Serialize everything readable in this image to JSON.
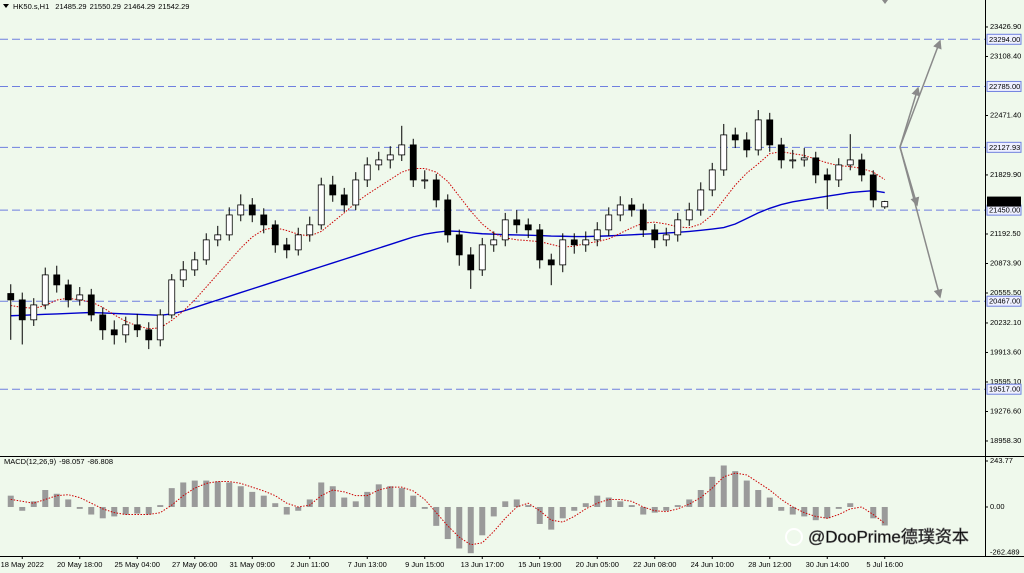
{
  "chart_data": {
    "type": "candlestick",
    "symbol": "HK50.s,H1",
    "color": "#000000",
    "categories": [
      null,
      "18 May 2022",
      null,
      null,
      null,
      null,
      "20 May 18:00",
      null,
      null,
      null,
      null,
      "25 May 04:00",
      null,
      null,
      null,
      null,
      "27 May 06:00",
      null,
      null,
      null,
      null,
      "31 May 09:00",
      null,
      null,
      null,
      null,
      "2 Jun 11:00",
      null,
      null,
      null,
      null,
      "7 Jun 13:00",
      null,
      null,
      null,
      null,
      "9 Jun 15:00",
      null,
      null,
      null,
      null,
      "13 Jun 17:00",
      null,
      null,
      null,
      null,
      "15 Jun 19:00",
      null,
      null,
      null,
      null,
      "20 Jun 05:00",
      null,
      null,
      null,
      null,
      "22 Jun 08:00",
      null,
      null,
      null,
      null,
      "24 Jun 10:00",
      null,
      null,
      null,
      null,
      "28 Jun 12:00",
      null,
      null,
      null,
      null,
      "30 Jun 14:00",
      null,
      null,
      null,
      null,
      "5 Jul 16:00"
    ],
    "open": [
      20550,
      20481,
      20266,
      20427,
      20751,
      20643,
      20481,
      20535,
      20319,
      20158,
      20104,
      20212,
      20158,
      20050,
      20319,
      20697,
      20805,
      20913,
      21129,
      21183,
      21398,
      21506,
      21398,
      21291,
      21075,
      21021,
      21183,
      21291,
      21722,
      21614,
      21506,
      21776,
      21938,
      21992,
      22046,
      22154,
      21776,
      21776,
      21560,
      21183,
      20967,
      20805,
      21075,
      21129,
      21345,
      21291,
      21237,
      20913,
      20859,
      21129,
      21075,
      21129,
      21237,
      21398,
      21506,
      21452,
      21237,
      21129,
      21183,
      21345,
      21452,
      21668,
      21884,
      22262,
      22208,
      22100,
      22424,
      22154,
      21992,
      21992,
      22014,
      21830,
      21776,
      21938,
      21992,
      21830,
      21485.29
    ],
    "high": [
      20650,
      20560,
      20500,
      20830,
      20850,
      20700,
      20620,
      20600,
      20400,
      20260,
      20300,
      20330,
      20240,
      20380,
      20760,
      20900,
      21000,
      21200,
      21280,
      21480,
      21620,
      21580,
      21470,
      21340,
      21150,
      21260,
      21380,
      21800,
      21820,
      21690,
      21860,
      22020,
      22080,
      22140,
      22360,
      22220,
      21880,
      21840,
      21620,
      21240,
      21050,
      21150,
      21220,
      21420,
      21450,
      21360,
      21300,
      20980,
      21200,
      21200,
      21220,
      21320,
      21480,
      21600,
      21580,
      21520,
      21300,
      21260,
      21420,
      21530,
      21750,
      21960,
      22380,
      22340,
      22290,
      22530,
      22500,
      22230,
      22100,
      22120,
      22080,
      21900,
      22010,
      22270,
      22060,
      21880,
      21550.29
    ],
    "low": [
      20050,
      20000,
      20200,
      20380,
      20560,
      20400,
      20420,
      20250,
      20050,
      20000,
      20020,
      20080,
      19950,
      19980,
      20280,
      20620,
      20740,
      20860,
      21060,
      21120,
      21330,
      21320,
      21200,
      20990,
      20930,
      20960,
      21110,
      21240,
      21540,
      21430,
      21450,
      21700,
      21880,
      21900,
      21980,
      21700,
      21680,
      21480,
      21100,
      20850,
      20600,
      20740,
      21000,
      21060,
      21200,
      21150,
      20820,
      20640,
      20780,
      20980,
      21000,
      21060,
      21170,
      21330,
      21380,
      21160,
      21040,
      21060,
      21110,
      21280,
      21390,
      21600,
      21820,
      22120,
      22020,
      22040,
      22080,
      21900,
      21900,
      21920,
      21740,
      21460,
      21700,
      21880,
      21760,
      21480,
      21464.29
    ],
    "close": [
      20481,
      20266,
      20427,
      20751,
      20643,
      20481,
      20535,
      20319,
      20158,
      20104,
      20212,
      20158,
      20050,
      20319,
      20697,
      20805,
      20913,
      21129,
      21183,
      21398,
      21506,
      21398,
      21291,
      21075,
      21021,
      21183,
      21291,
      21722,
      21614,
      21506,
      21776,
      21938,
      21992,
      22046,
      22154,
      21776,
      21776,
      21560,
      21183,
      20967,
      20805,
      21075,
      21129,
      21345,
      21291,
      21237,
      20913,
      20859,
      21129,
      21075,
      21129,
      21237,
      21398,
      21506,
      21452,
      21237,
      21129,
      21183,
      21345,
      21452,
      21668,
      21884,
      22262,
      22208,
      22100,
      22424,
      22154,
      21992,
      21992,
      22014,
      21830,
      21776,
      21938,
      21992,
      21830,
      21560,
      21542.29
    ],
    "ylim": [
      18807,
      23718
    ],
    "yticks": [
      {
        "value": 23426.9,
        "label": "23426.90"
      },
      {
        "value": 23108.4,
        "label": "23108.40"
      },
      {
        "value": 22471.4,
        "label": "22471.40"
      },
      {
        "value": 21829.9,
        "label": "21829.90"
      },
      {
        "value": 21192.5,
        "label": "21192.50"
      },
      {
        "value": 20873.9,
        "label": "20873.90"
      },
      {
        "value": 20555.5,
        "label": "20555.50"
      },
      {
        "value": 20232.1,
        "label": "20232.10"
      },
      {
        "value": 19913.6,
        "label": "19913.60"
      },
      {
        "value": 19595.1,
        "label": "19595.10"
      },
      {
        "value": 19276.6,
        "label": "19276.60"
      },
      {
        "value": 18958.3,
        "label": "18958.30"
      }
    ],
    "grid": false,
    "moving_averages": [
      {
        "color": "#0000cc",
        "style": "solid",
        "values": [
          20310,
          20315,
          20320,
          20325,
          20330,
          20335,
          20340,
          20345,
          20340,
          20335,
          20330,
          20325,
          20320,
          20315,
          20330,
          20360,
          20400,
          20440,
          20480,
          20520,
          20560,
          20600,
          20640,
          20680,
          20720,
          20760,
          20800,
          20840,
          20880,
          20920,
          20960,
          21000,
          21040,
          21080,
          21120,
          21160,
          21190,
          21210,
          21225,
          21220,
          21205,
          21195,
          21190,
          21185,
          21182,
          21180,
          21175,
          21170,
          21168,
          21165,
          21165,
          21168,
          21172,
          21178,
          21184,
          21190,
          21196,
          21202,
          21210,
          21220,
          21232,
          21246,
          21262,
          21300,
          21360,
          21420,
          21470,
          21510,
          21540,
          21560,
          21580,
          21600,
          21620,
          21640,
          21650,
          21660,
          21640
        ]
      },
      {
        "color": "#cc0000",
        "style": "dotted",
        "values": [
          20420,
          20400,
          20390,
          20420,
          20480,
          20500,
          20480,
          20460,
          20400,
          20320,
          20250,
          20200,
          20170,
          20180,
          20260,
          20360,
          20480,
          20620,
          20760,
          20900,
          21040,
          21160,
          21240,
          21260,
          21230,
          21190,
          21170,
          21220,
          21320,
          21420,
          21530,
          21620,
          21700,
          21780,
          21860,
          21900,
          21900,
          21860,
          21760,
          21600,
          21440,
          21300,
          21200,
          21150,
          21130,
          21120,
          21110,
          21080,
          21050,
          21060,
          21090,
          21110,
          21140,
          21200,
          21260,
          21310,
          21320,
          21300,
          21270,
          21260,
          21300,
          21400,
          21560,
          21720,
          21850,
          21950,
          22060,
          22080,
          22060,
          22040,
          22000,
          21960,
          21930,
          21920,
          21900,
          21860,
          21780
        ]
      }
    ],
    "levels": [
      {
        "value": 23294,
        "label": "23294.00"
      },
      {
        "value": 22785,
        "label": "22785.00"
      },
      {
        "value": 22127.93,
        "label": "22127.93"
      },
      {
        "value": 21450,
        "label": "21450.00"
      },
      {
        "value": 20467,
        "label": "20467.00"
      },
      {
        "value": 19517,
        "label": "19517.00"
      }
    ],
    "level_color": "#6f7fdf",
    "macd": {
      "title": "MACD(12,26,9)",
      "histogram_color": "#9a9a9a",
      "signal_color": "#cc0000",
      "histogram": [
        60,
        -20,
        30,
        90,
        70,
        40,
        -10,
        -40,
        -60,
        -50,
        -40,
        -35,
        -40,
        10,
        100,
        130,
        140,
        140,
        135,
        130,
        110,
        80,
        60,
        20,
        -40,
        -20,
        40,
        130,
        110,
        50,
        30,
        80,
        120,
        110,
        100,
        60,
        -10,
        -100,
        -170,
        -220,
        -245,
        -150,
        -50,
        30,
        40,
        10,
        -90,
        -120,
        -60,
        -20,
        20,
        60,
        50,
        30,
        10,
        -40,
        -30,
        -20,
        10,
        40,
        90,
        160,
        220,
        190,
        140,
        90,
        50,
        -20,
        -40,
        -50,
        -70,
        -60,
        -10,
        20,
        0,
        -60,
        -98.057
      ],
      "signal": [
        40,
        30,
        20,
        40,
        60,
        65,
        50,
        20,
        -10,
        -30,
        -40,
        -40,
        -40,
        -30,
        10,
        60,
        100,
        125,
        135,
        135,
        125,
        105,
        85,
        60,
        20,
        0,
        10,
        60,
        90,
        80,
        60,
        60,
        90,
        105,
        105,
        85,
        40,
        -30,
        -100,
        -160,
        -200,
        -190,
        -130,
        -60,
        0,
        20,
        -20,
        -70,
        -80,
        -50,
        -10,
        20,
        40,
        40,
        30,
        0,
        -20,
        -25,
        -10,
        15,
        50,
        100,
        160,
        180,
        170,
        130,
        90,
        40,
        0,
        -30,
        -50,
        -60,
        -40,
        -10,
        0,
        -40,
        -86.808
      ],
      "ylim": [
        -262.489,
        243.77
      ],
      "yticks": [
        243.77,
        {
          "value": 0,
          "label": "0.00"
        },
        -262.489
      ]
    },
    "watermark": "@DooPrime德璞资本"
  }
}
